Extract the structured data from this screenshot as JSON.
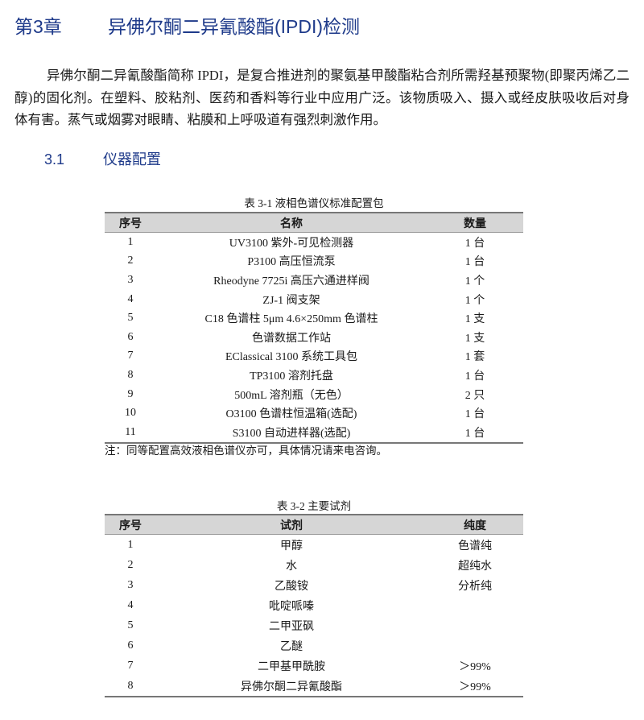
{
  "chapter": {
    "number": "第3章",
    "title": "异佛尔酮二异氰酸酯(IPDI)检测"
  },
  "intro": "异佛尔酮二异氰酸酯简称 IPDI，是复合推进剂的聚氨基甲酸酯粘合剂所需羟基预聚物(即聚丙烯乙二醇)的固化剂。在塑料、胶粘剂、医药和香料等行业中应用广泛。该物质吸入、摄入或经皮肤吸收后对身体有害。蒸气或烟雾对眼睛、粘膜和上呼吸道有强烈刺激作用。",
  "section": {
    "number": "3.1",
    "title": "仪器配置"
  },
  "table1": {
    "caption": "表 3-1  液相色谱仪标准配置包",
    "headers": [
      "序号",
      "名称",
      "数量"
    ],
    "rows": [
      [
        "1",
        "UV3100  紫外-可见检测器",
        "1 台"
      ],
      [
        "2",
        "P3100 高压恒流泵",
        "1 台"
      ],
      [
        "3",
        "Rheodyne 7725i  高压六通进样阀",
        "1 个"
      ],
      [
        "4",
        "ZJ-1 阀支架",
        "1 个"
      ],
      [
        "5",
        "C18 色谱柱  5μm 4.6×250mm 色谱柱",
        "1 支"
      ],
      [
        "6",
        "色谱数据工作站",
        "1 支"
      ],
      [
        "7",
        "EClassical 3100 系统工具包",
        "1 套"
      ],
      [
        "8",
        "TP3100 溶剂托盘",
        "1 台"
      ],
      [
        "9",
        "500mL 溶剂瓶（无色）",
        "2 只"
      ],
      [
        "10",
        "O3100 色谱柱恒温箱(选配)",
        "1 台"
      ],
      [
        "11",
        "S3100 自动进样器(选配)",
        "1 台"
      ]
    ],
    "note": "注：同等配置高效液相色谱仪亦可，具体情况请来电咨询。"
  },
  "table2": {
    "caption": "表 3-2  主要试剂",
    "headers": [
      "序号",
      "试剂",
      "纯度"
    ],
    "rows": [
      [
        "1",
        "甲醇",
        "色谱纯"
      ],
      [
        "2",
        "水",
        "超纯水"
      ],
      [
        "3",
        "乙酸铵",
        "分析纯"
      ],
      [
        "4",
        "吡啶哌嗪",
        ""
      ],
      [
        "5",
        "二甲亚砜",
        ""
      ],
      [
        "6",
        "乙醚",
        ""
      ],
      [
        "7",
        "二甲基甲酰胺",
        "＞99%"
      ],
      [
        "8",
        "异佛尔酮二异氰酸酯",
        "＞99%"
      ]
    ]
  }
}
